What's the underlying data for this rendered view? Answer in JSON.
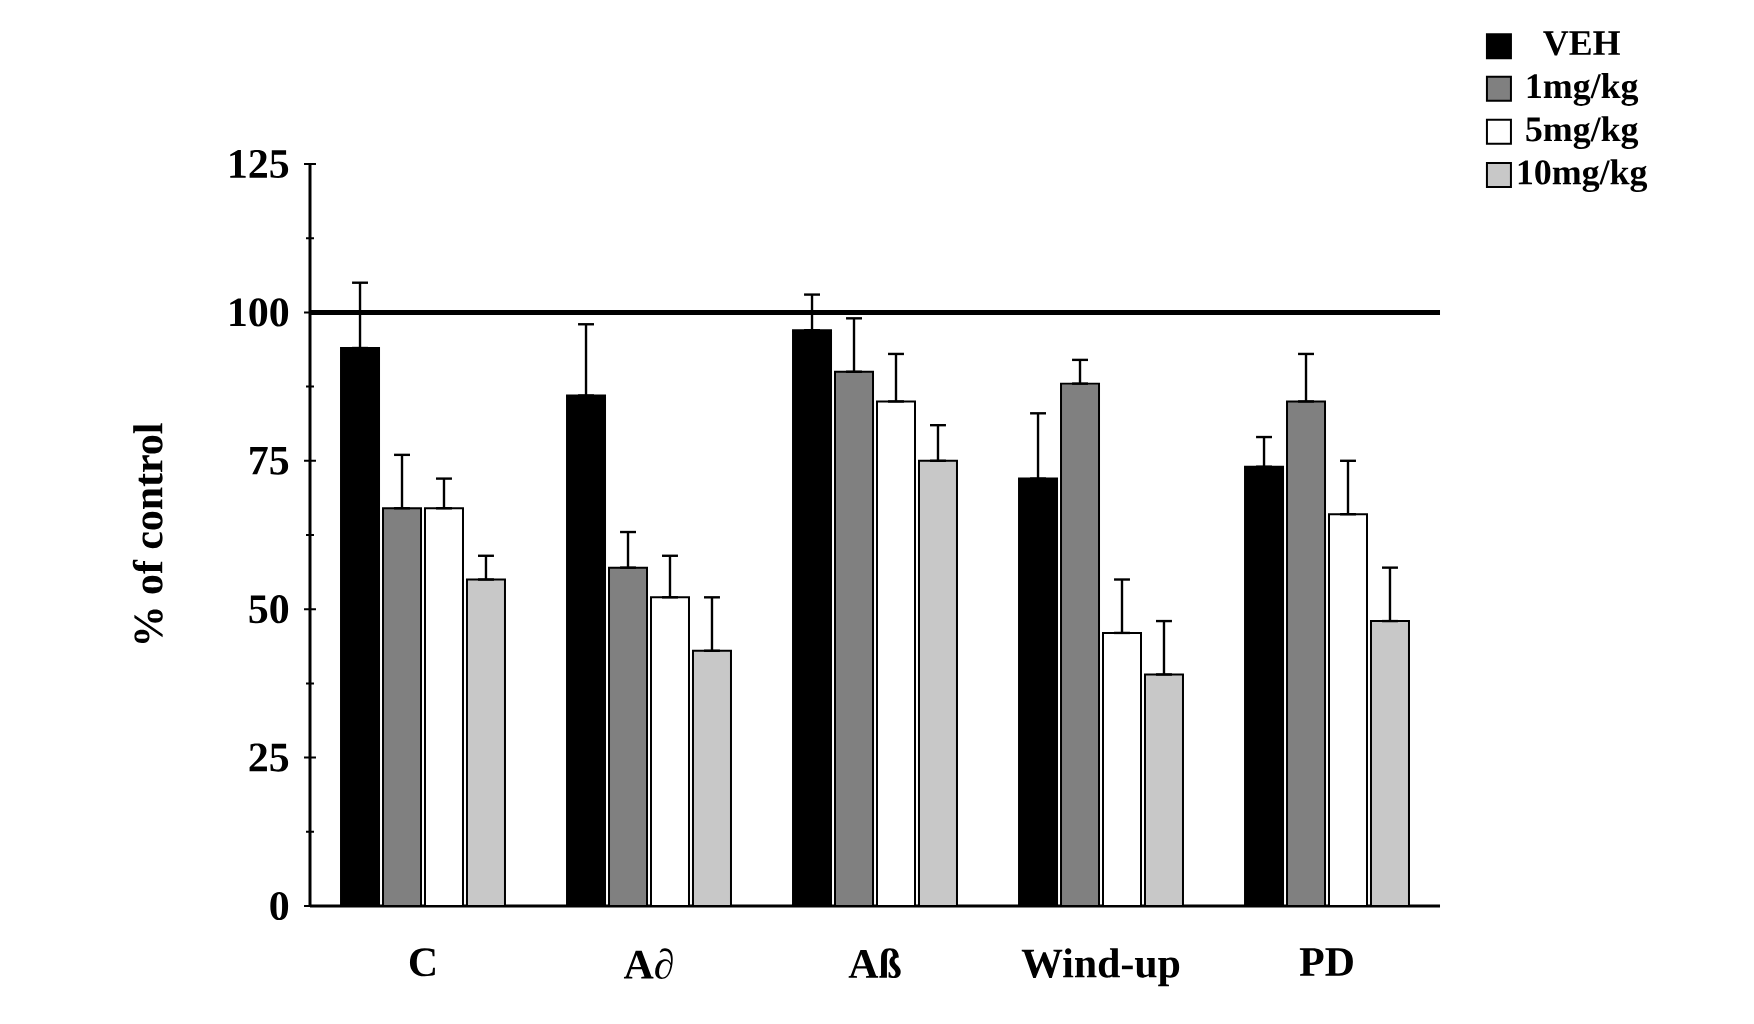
{
  "chart_data": {
    "type": "bar",
    "ylabel": "% of control",
    "categories": [
      "C",
      "A∂",
      "Aß",
      "Wind-up",
      "PD"
    ],
    "series": [
      {
        "name": "VEH",
        "color": "#000000",
        "values": [
          94,
          86,
          97,
          72,
          74
        ],
        "errors": [
          [
            94,
            105
          ],
          [
            86,
            98
          ],
          [
            97,
            103
          ],
          [
            72,
            83
          ],
          [
            74,
            79
          ]
        ]
      },
      {
        "name": "1mg/kg",
        "color": "#808080",
        "values": [
          67,
          57,
          90,
          88,
          85
        ],
        "errors": [
          [
            67,
            76
          ],
          [
            57,
            63
          ],
          [
            90,
            99
          ],
          [
            88,
            92
          ],
          [
            85,
            93
          ]
        ]
      },
      {
        "name": "5mg/kg",
        "color": "#ffffff",
        "values": [
          67,
          52,
          85,
          46,
          66
        ],
        "errors": [
          [
            67,
            72
          ],
          [
            52,
            59
          ],
          [
            85,
            93
          ],
          [
            46,
            55
          ],
          [
            66,
            75
          ]
        ]
      },
      {
        "name": "10mg/kg",
        "color": "#c8c8c8",
        "values": [
          55,
          43,
          75,
          39,
          48
        ],
        "errors": [
          [
            55,
            59
          ],
          [
            43,
            52
          ],
          [
            75,
            81
          ],
          [
            39,
            48
          ],
          [
            48,
            57
          ]
        ]
      }
    ],
    "ylim": [
      0,
      125
    ],
    "yticks": [
      0,
      25,
      50,
      75,
      100,
      125
    ],
    "ref_lines": [
      {
        "axis": "y",
        "value": 100
      }
    ],
    "legend": "top right"
  }
}
